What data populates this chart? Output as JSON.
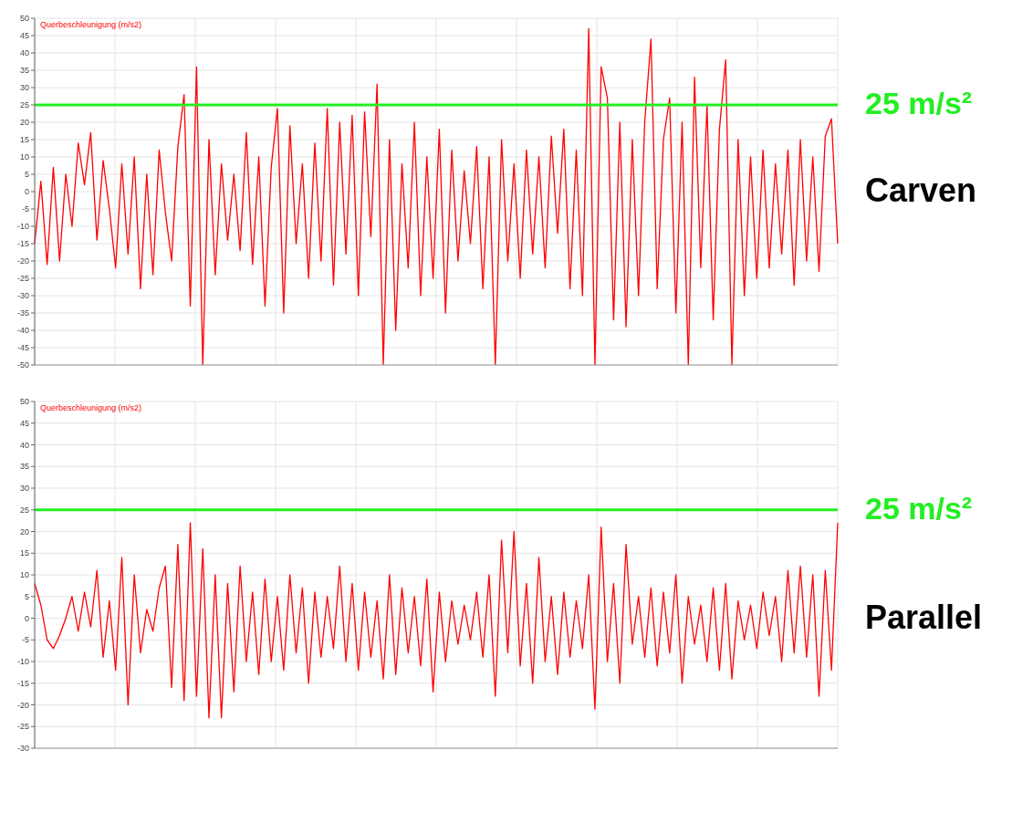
{
  "chart_data": [
    {
      "type": "line",
      "ylabel": "Querbeschleunigung (m/s2)",
      "annotations": [
        "Carven"
      ],
      "grid": true,
      "legend": false,
      "marker": "none",
      "ylim": [
        -50,
        50
      ],
      "yticks": [
        -50,
        -45,
        -40,
        -35,
        -30,
        -25,
        -20,
        -15,
        -10,
        -5,
        0,
        5,
        10,
        15,
        20,
        25,
        30,
        35,
        40,
        45,
        50
      ],
      "ref_lines": [
        {
          "axis": "y",
          "value": 25,
          "label": "25 m/s²",
          "color": "#22ee22"
        }
      ],
      "categories": [
        null,
        null,
        null,
        null,
        null,
        null,
        null,
        null,
        null,
        null,
        null,
        null,
        null,
        null,
        null,
        null,
        null,
        null,
        null,
        null,
        null,
        null,
        null,
        null,
        null,
        null,
        null,
        null,
        null,
        null,
        null,
        null,
        null,
        null,
        null,
        null,
        null,
        null,
        null,
        null,
        null,
        null,
        null,
        null,
        null,
        null,
        null,
        null,
        null,
        null,
        null,
        null,
        null,
        null,
        null,
        null,
        null,
        null,
        null,
        null,
        null,
        null,
        null,
        null,
        null,
        null,
        null,
        null,
        null,
        null,
        null,
        null,
        null,
        null,
        null,
        null,
        null,
        null,
        null,
        null,
        null,
        null,
        null,
        null,
        null,
        null,
        null,
        null,
        null,
        null,
        null,
        null,
        null,
        null,
        null,
        null,
        null,
        null,
        null,
        null,
        null,
        null,
        null,
        null,
        null,
        null,
        null,
        null,
        null,
        null,
        null,
        null,
        null,
        null,
        null,
        null,
        null,
        null,
        null,
        null,
        null,
        null,
        null,
        null,
        null,
        null,
        null,
        null,
        null,
        null
      ],
      "series": [
        {
          "color": "#ff0000",
          "values": [
            -15,
            3,
            -21,
            7,
            -20,
            5,
            -10,
            14,
            2,
            17,
            -14,
            9,
            -5,
            -22,
            8,
            -18,
            10,
            -28,
            5,
            -24,
            12,
            -6,
            -20,
            13,
            28,
            -33,
            36,
            -50,
            15,
            -24,
            8,
            -14,
            5,
            -17,
            17,
            -21,
            10,
            -33,
            7,
            24,
            -35,
            19,
            -15,
            8,
            -25,
            14,
            -20,
            24,
            -27,
            20,
            -18,
            22,
            -30,
            23,
            -13,
            31,
            -50,
            15,
            -40,
            8,
            -22,
            20,
            -30,
            10,
            -25,
            18,
            -35,
            12,
            -20,
            6,
            -15,
            13,
            -28,
            10,
            -50,
            15,
            -20,
            8,
            -25,
            12,
            -18,
            10,
            -22,
            16,
            -12,
            18,
            -28,
            12,
            -30,
            47,
            -50,
            36,
            27,
            -37,
            20,
            -39,
            15,
            -30,
            20,
            44,
            -28,
            15,
            27,
            -35,
            20,
            -50,
            33,
            -22,
            25,
            -37,
            18,
            38,
            -50,
            15,
            -30,
            10,
            -25,
            12,
            -22,
            8,
            -18,
            12,
            -27,
            15,
            -20,
            10,
            -23,
            16,
            21,
            -15
          ]
        }
      ]
    },
    {
      "type": "line",
      "ylabel": "Querbeschleunigung (m/s2)",
      "annotations": [
        "Parallel"
      ],
      "grid": true,
      "legend": false,
      "marker": "none",
      "ylim": [
        -30,
        50
      ],
      "yticks": [
        -30,
        -25,
        -20,
        -15,
        -10,
        -5,
        0,
        5,
        10,
        15,
        20,
        25,
        30,
        35,
        40,
        45,
        50
      ],
      "ref_lines": [
        {
          "axis": "y",
          "value": 25,
          "label": "25 m/s²",
          "color": "#22ee22"
        }
      ],
      "categories": [
        null,
        null,
        null,
        null,
        null,
        null,
        null,
        null,
        null,
        null,
        null,
        null,
        null,
        null,
        null,
        null,
        null,
        null,
        null,
        null,
        null,
        null,
        null,
        null,
        null,
        null,
        null,
        null,
        null,
        null,
        null,
        null,
        null,
        null,
        null,
        null,
        null,
        null,
        null,
        null,
        null,
        null,
        null,
        null,
        null,
        null,
        null,
        null,
        null,
        null,
        null,
        null,
        null,
        null,
        null,
        null,
        null,
        null,
        null,
        null,
        null,
        null,
        null,
        null,
        null,
        null,
        null,
        null,
        null,
        null,
        null,
        null,
        null,
        null,
        null,
        null,
        null,
        null,
        null,
        null,
        null,
        null,
        null,
        null,
        null,
        null,
        null,
        null,
        null,
        null,
        null,
        null,
        null,
        null,
        null,
        null,
        null,
        null,
        null,
        null,
        null,
        null,
        null,
        null,
        null,
        null,
        null,
        null,
        null,
        null,
        null,
        null,
        null,
        null,
        null,
        null,
        null,
        null,
        null,
        null,
        null,
        null,
        null,
        null,
        null,
        null,
        null,
        null,
        null,
        null
      ],
      "series": [
        {
          "color": "#ff0000",
          "values": [
            8,
            3,
            -5,
            -7,
            -4,
            0,
            5,
            -3,
            6,
            -2,
            11,
            -9,
            4,
            -12,
            14,
            -20,
            10,
            -8,
            2,
            -3,
            7,
            12,
            -16,
            17,
            -19,
            22,
            -18,
            16,
            -23,
            10,
            -23,
            8,
            -17,
            12,
            -10,
            6,
            -13,
            9,
            -10,
            5,
            -12,
            10,
            -8,
            7,
            -15,
            6,
            -9,
            5,
            -7,
            12,
            -10,
            8,
            -12,
            6,
            -9,
            4,
            -14,
            10,
            -13,
            7,
            -8,
            5,
            -11,
            9,
            -17,
            6,
            -10,
            4,
            -6,
            3,
            -5,
            6,
            -9,
            10,
            -18,
            18,
            -8,
            20,
            -11,
            8,
            -15,
            14,
            -10,
            5,
            -13,
            6,
            -9,
            4,
            -7,
            10,
            -21,
            21,
            -10,
            8,
            -15,
            17,
            -6,
            5,
            -9,
            7,
            -11,
            6,
            -8,
            10,
            -15,
            5,
            -6,
            3,
            -10,
            7,
            -12,
            8,
            -14,
            4,
            -5,
            3,
            -7,
            6,
            -4,
            5,
            -10,
            11,
            -8,
            12,
            -9,
            10,
            -18,
            11,
            -12,
            22
          ]
        }
      ]
    }
  ]
}
